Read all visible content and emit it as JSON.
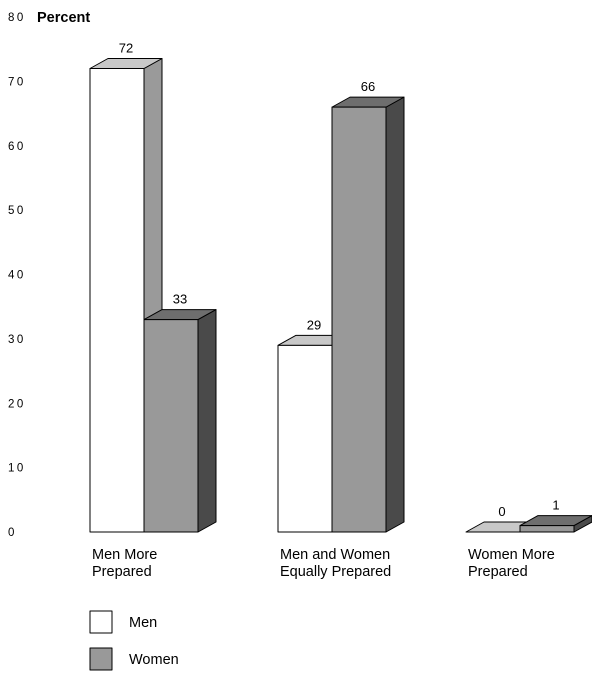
{
  "chart_data": {
    "type": "bar",
    "ylabel": "Percent",
    "ylim": [
      0,
      80
    ],
    "yticks": [
      0,
      10,
      20,
      30,
      40,
      50,
      60,
      70,
      80
    ],
    "grid": false,
    "legend_position": "bottom-left",
    "categories": [
      [
        "Men More",
        "Prepared"
      ],
      [
        "Men and Women",
        "Equally Prepared"
      ],
      [
        "Women More",
        "Prepared"
      ]
    ],
    "series": [
      {
        "name": "Men",
        "values": [
          72,
          29,
          0
        ],
        "color": "#ffffff",
        "top_color": "#c8c8c8",
        "side_color": "#9a9a9a"
      },
      {
        "name": "Women",
        "values": [
          33,
          66,
          1
        ],
        "color": "#999999",
        "top_color": "#6e6e6e",
        "side_color": "#4a4a4a"
      }
    ]
  }
}
